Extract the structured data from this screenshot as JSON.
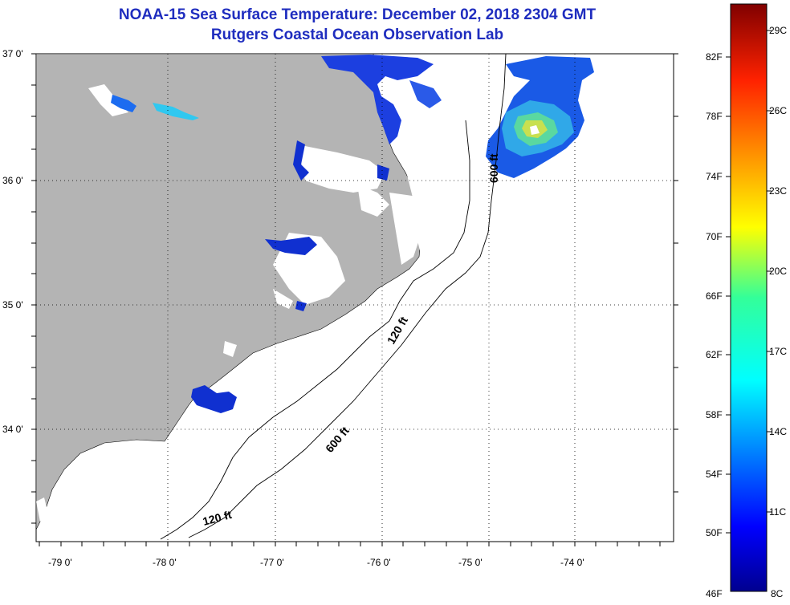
{
  "title": "NOAA-15 Sea Surface Temperature:  December 02, 2018 2304 GMT",
  "subtitle": "Rutgers Coastal Ocean Observation Lab",
  "axes": {
    "lat_labels": [
      "37 0'",
      "36 0'",
      "35 0'",
      "34 0'"
    ],
    "lon_labels": [
      "-79 0'",
      "-78 0'",
      "-77 0'",
      "-76 0'",
      "-75 0'",
      "-74 0'"
    ]
  },
  "contours": {
    "c600_top": "600 ft",
    "c120_mid": "120 ft",
    "c600_mid": "600 ft",
    "c120_bottom": "120 ft"
  },
  "colorbar": {
    "fahrenheit": [
      "82F",
      "78F",
      "74F",
      "70F",
      "66F",
      "62F",
      "58F",
      "54F",
      "50F",
      "46F"
    ],
    "celsius": [
      "29C",
      "26C",
      "23C",
      "20C",
      "17C",
      "14C",
      "11C",
      "8C"
    ]
  },
  "colors": {
    "land": "#b4b4b4",
    "cloud": "#ffffff",
    "title": "#1f2dbf"
  }
}
